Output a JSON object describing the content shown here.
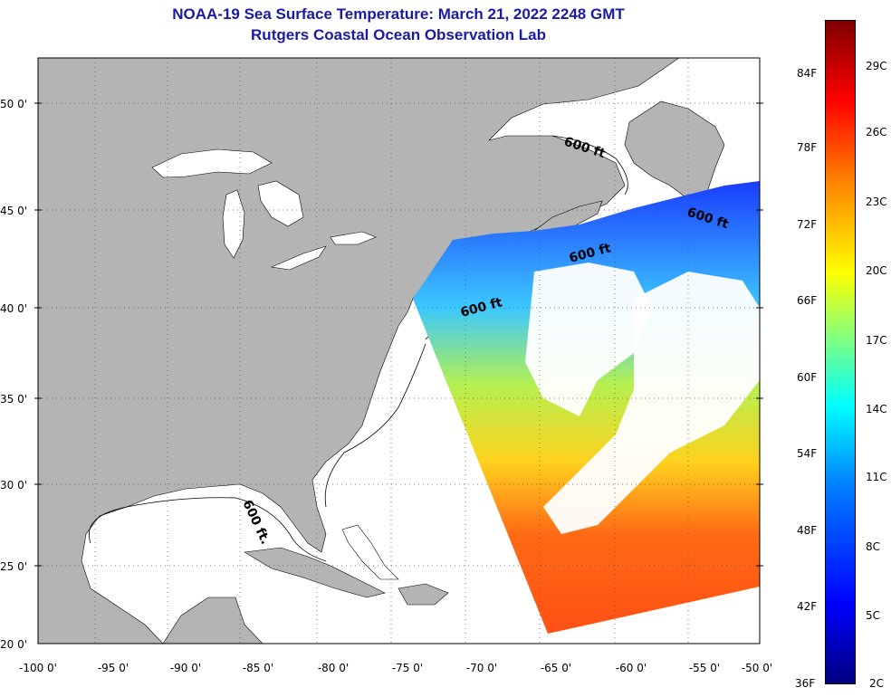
{
  "title": {
    "line1": "NOAA-19 Sea Surface Temperature:  March 21, 2022 2248 GMT",
    "line2": "Rutgers Coastal Ocean Observation Lab"
  },
  "axes": {
    "lon_ticks": [
      "-100 0'",
      "-95 0'",
      "-90 0'",
      "-85 0'",
      "-80 0'",
      "-75 0'",
      "-70 0'",
      "-65 0'",
      "-60 0'",
      "-55 0'",
      "-50 0'"
    ],
    "lat_ticks": [
      "50 0'",
      "45 0'",
      "40 0'",
      "35 0'",
      "30 0'",
      "25 0'",
      "20 0'"
    ]
  },
  "contour_labels": [
    "600 ft",
    "600 ft",
    "600 ft",
    "600 ft",
    "600 ft."
  ],
  "colorbar": {
    "fahrenheit": [
      "84F",
      "78F",
      "72F",
      "66F",
      "60F",
      "54F",
      "48F",
      "42F",
      "36F"
    ],
    "celsius": [
      "29C",
      "26C",
      "23C",
      "20C",
      "17C",
      "14C",
      "11C",
      "8C",
      "5C",
      "2C"
    ]
  },
  "colors": {
    "title": "#1a1aa6",
    "land": "#b4b4b4",
    "ocean": "#ffffff"
  }
}
